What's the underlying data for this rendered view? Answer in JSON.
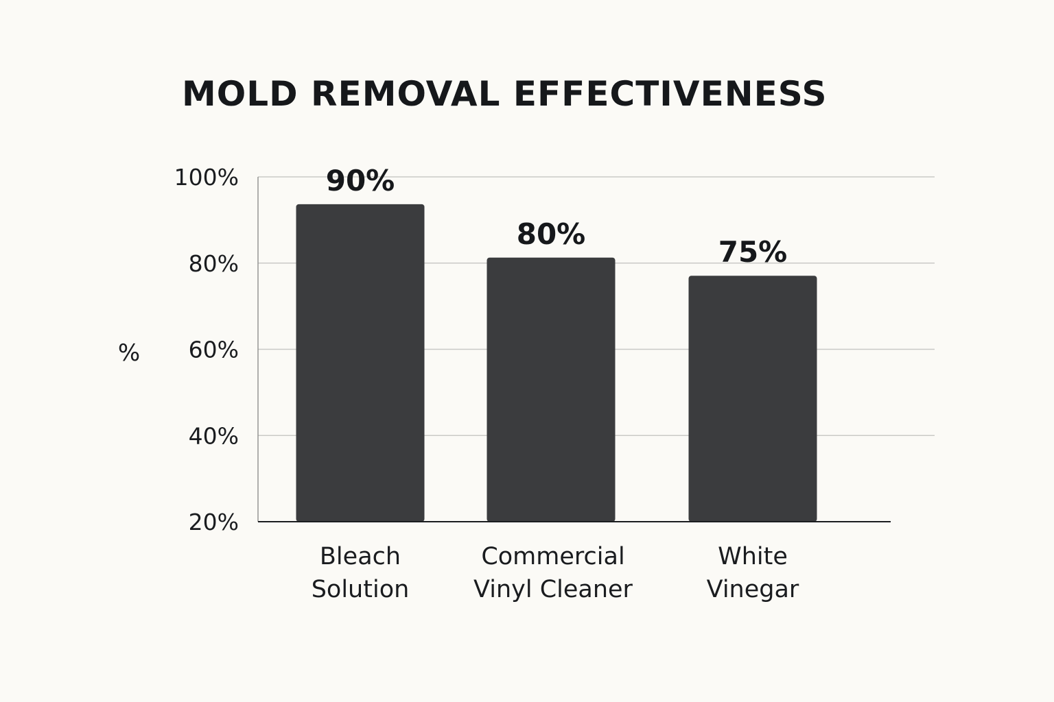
{
  "chart_data": {
    "type": "bar",
    "title": "MOLD REMOVAL EFFECTIVENESS",
    "ylabel": "%",
    "xlabel": "",
    "ylim": [
      20,
      100
    ],
    "yticks": [
      20,
      40,
      60,
      80,
      100
    ],
    "ytick_labels": [
      "20%",
      "40%",
      "60%",
      "80%",
      "100%"
    ],
    "grid": true,
    "categories": [
      [
        "Bleach",
        "Solution"
      ],
      [
        "Commercial",
        "Vinyl Cleaner"
      ],
      [
        "White",
        "Vinegar"
      ]
    ],
    "values": [
      90,
      80,
      75
    ],
    "data_labels": [
      "90%",
      "80%",
      "75%"
    ],
    "bar_color": "#3b3c3e",
    "background_color": "#fbfaf6"
  }
}
